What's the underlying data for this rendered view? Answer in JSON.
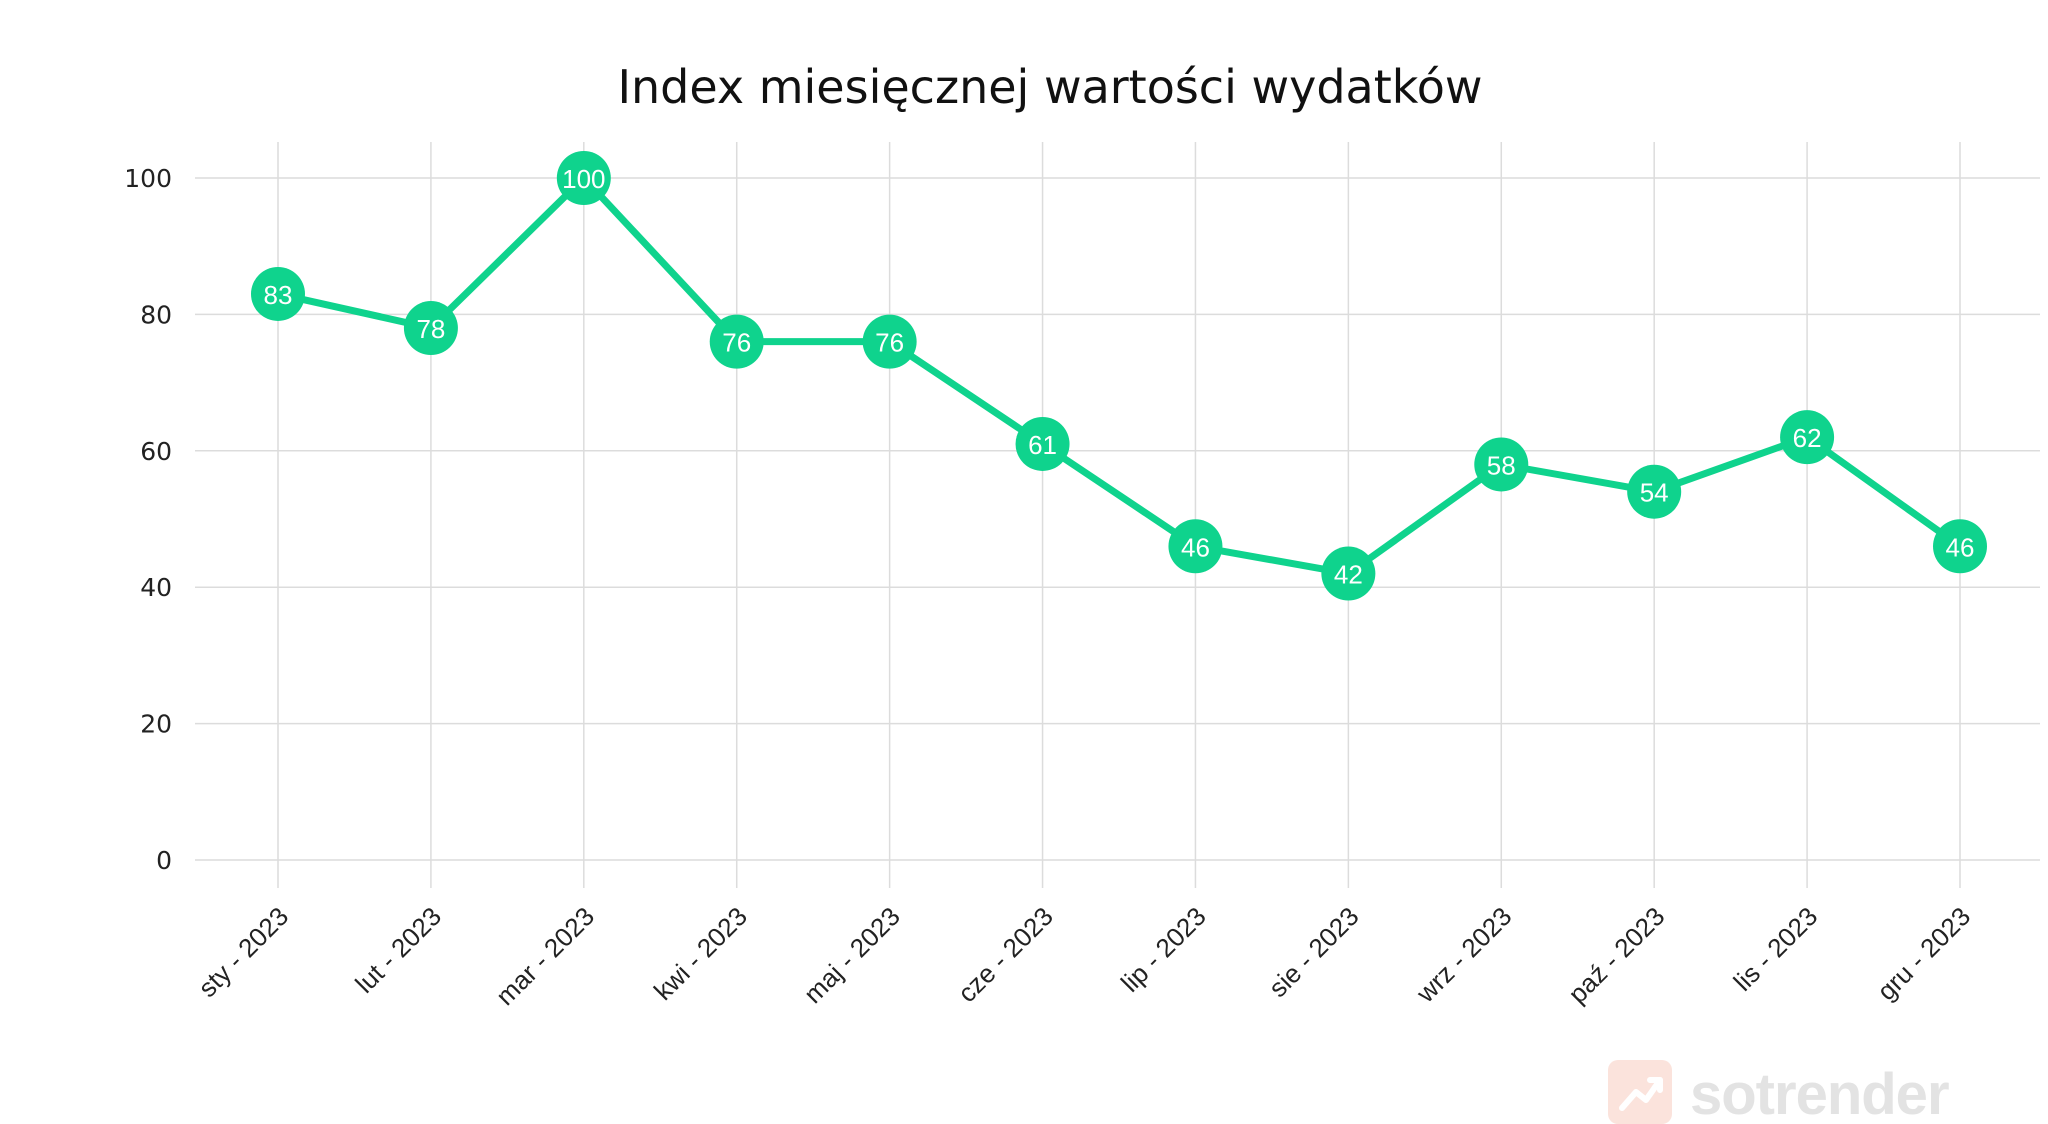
{
  "chart_data": {
    "type": "line",
    "title": "Index miesięcznej wartości wydatków",
    "xlabel": "",
    "ylabel": "",
    "categories": [
      "sty - 2023",
      "lut - 2023",
      "mar - 2023",
      "kwi - 2023",
      "maj - 2023",
      "cze - 2023",
      "lip - 2023",
      "sie - 2023",
      "wrz - 2023",
      "paź - 2023",
      "lis - 2023",
      "gru - 2023"
    ],
    "values": [
      83,
      78,
      100,
      76,
      76,
      61,
      46,
      42,
      58,
      54,
      62,
      46
    ],
    "data_labels": [
      "83",
      "78",
      "100",
      "76",
      "76",
      "61",
      "46",
      "42",
      "58",
      "54",
      "62",
      "46"
    ],
    "ylim": [
      0,
      100
    ],
    "yticks": [
      0,
      20,
      40,
      60,
      80,
      100
    ],
    "ytick_labels": [
      "0",
      "20",
      "40",
      "60",
      "80",
      "100"
    ],
    "grid": true,
    "legend": "none",
    "colors": {
      "line": "#0fd38d",
      "marker": "#0fd38d",
      "grid": "#dcdcdc",
      "label_text": "#ffffff"
    }
  },
  "watermark": {
    "brand": "sotrender",
    "icon": "trend-arrow-icon",
    "color": "#e3e3e3",
    "icon_color": "#fbe3dc"
  }
}
